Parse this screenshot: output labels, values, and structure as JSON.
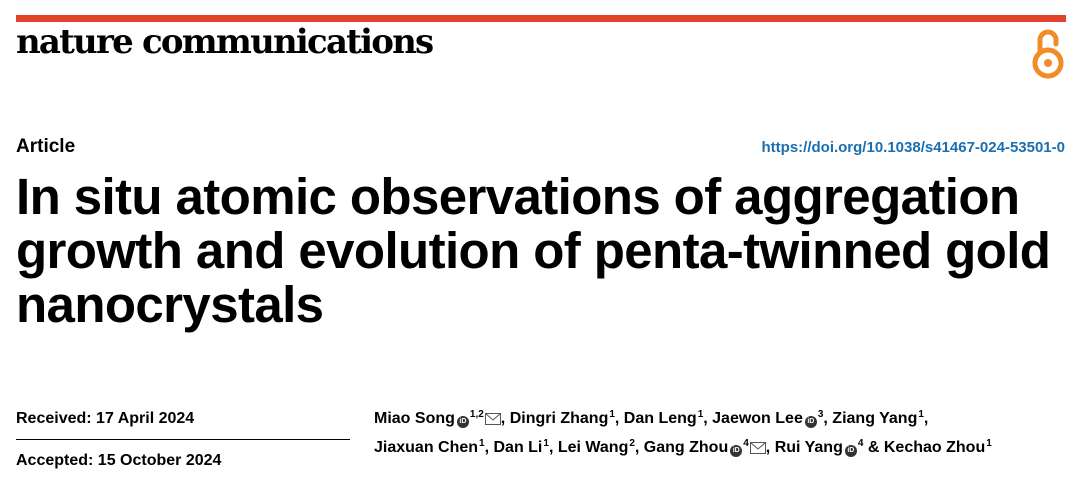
{
  "header": {
    "journal": "nature communications",
    "open_access_icon": "open-access-lock-icon",
    "accent_color": "#e3432b",
    "oa_color": "#f28c28"
  },
  "article": {
    "type": "Article",
    "doi_url": "https://doi.org/10.1038/s41467-024-53501-0",
    "title_lines": [
      "In situ atomic observations of aggregation",
      "growth and evolution of penta-twinned gold",
      "nanocrystals"
    ],
    "received": "Received: 17 April 2024",
    "accepted": "Accepted: 15 October 2024"
  },
  "authors": [
    {
      "name": "Miao Song",
      "aff": "1,2",
      "orcid": true,
      "corresponding": true,
      "sep": ", "
    },
    {
      "name": "Dingri Zhang",
      "aff": "1",
      "orcid": false,
      "corresponding": false,
      "sep": ", "
    },
    {
      "name": "Dan Leng",
      "aff": "1",
      "orcid": false,
      "corresponding": false,
      "sep": ", "
    },
    {
      "name": "Jaewon Lee",
      "aff": "3",
      "orcid": true,
      "corresponding": false,
      "sep": ", "
    },
    {
      "name": "Ziang Yang",
      "aff": "1",
      "orcid": false,
      "corresponding": false,
      "sep": ","
    },
    {
      "name": "Jiaxuan Chen",
      "aff": "1",
      "orcid": false,
      "corresponding": false,
      "sep": ", "
    },
    {
      "name": "Dan Li",
      "aff": "1",
      "orcid": false,
      "corresponding": false,
      "sep": ", "
    },
    {
      "name": "Lei Wang",
      "aff": "2",
      "orcid": false,
      "corresponding": false,
      "sep": ", "
    },
    {
      "name": "Gang Zhou",
      "aff": "4",
      "orcid": true,
      "corresponding": true,
      "sep": ", "
    },
    {
      "name": "Rui Yang",
      "aff": "4",
      "orcid": true,
      "corresponding": false,
      "sep": " & "
    },
    {
      "name": "Kechao Zhou",
      "aff": "1",
      "orcid": false,
      "corresponding": false,
      "sep": ""
    }
  ]
}
